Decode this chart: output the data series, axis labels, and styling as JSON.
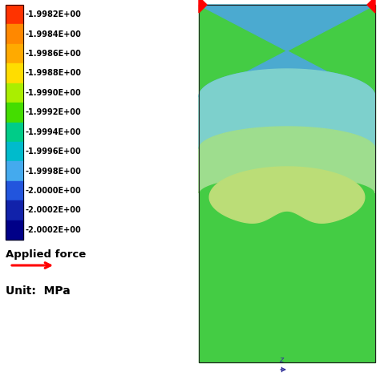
{
  "colorbar_labels": [
    "-1.9982E+00",
    "-1.9984E+00",
    "-1.9986E+00",
    "-1.9988E+00",
    "-1.9990E+00",
    "-1.9992E+00",
    "-1.9994E+00",
    "-1.9996E+00",
    "-1.9998E+00",
    "-2.0000E+00",
    "-2.0002E+00",
    "-2.0002E+00"
  ],
  "colorbar_colors": [
    "#FF3300",
    "#FF8800",
    "#FFAA00",
    "#FFDD00",
    "#AAEE00",
    "#44DD00",
    "#00CC88",
    "#00BBCC",
    "#44AAEE",
    "#2255DD",
    "#1122AA",
    "#000088"
  ],
  "applied_force_text": "Applied force",
  "unit_text": "Unit:  MPa",
  "bg_color": "#FFFFFF",
  "col_blue": "#4BAAD0",
  "col_cyan": "#7DD0CC",
  "col_ltgreen": "#9EDD8E",
  "col_green": "#44CC44",
  "col_ygreen": "#BBDD77",
  "col_outline": "#222222"
}
